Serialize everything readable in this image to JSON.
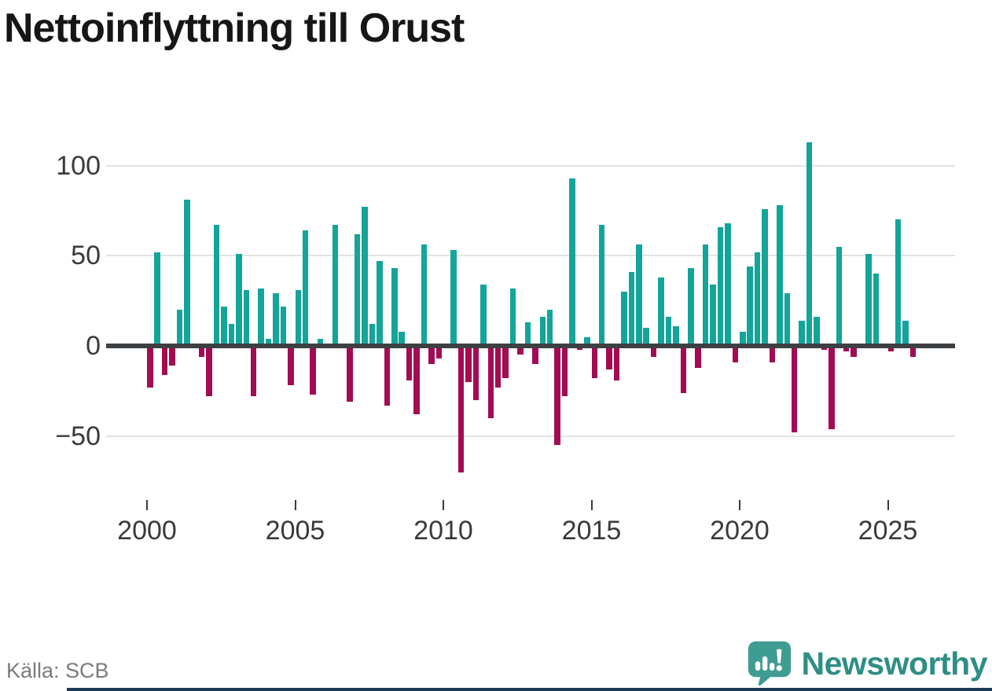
{
  "title": "Nettoinflyttning till Orust",
  "source": "Källa: SCB",
  "footer": {
    "brand": "Newsworthy"
  },
  "colors": {
    "positive": "#14a49a",
    "negative": "#a30b52",
    "zero_line": "#3d4043",
    "gridline": "#e3e3e3",
    "brand_teal": "#2e8e85",
    "bottom_strip": "#1d3a57"
  },
  "chart_data": {
    "type": "bar",
    "title": "Nettoinflyttning till Orust",
    "frequency": "quarterly",
    "x_start_year": 2000,
    "values": [
      -23,
      52,
      -16,
      -11,
      20,
      81,
      0,
      -6,
      -28,
      67,
      22,
      12,
      51,
      31,
      -28,
      32,
      4,
      29,
      22,
      -22,
      31,
      64,
      -27,
      4,
      0,
      67,
      0,
      -31,
      62,
      77,
      12,
      47,
      -33,
      43,
      8,
      -19,
      -38,
      56,
      -10,
      -7,
      0,
      53,
      -70,
      -20,
      -30,
      34,
      -40,
      -23,
      -18,
      32,
      -5,
      13,
      -10,
      16,
      20,
      -55,
      -28,
      93,
      -2,
      5,
      -18,
      67,
      -13,
      -19,
      30,
      41,
      56,
      10,
      -6,
      38,
      16,
      11,
      -26,
      43,
      -12,
      56,
      34,
      66,
      68,
      -9,
      8,
      44,
      52,
      76,
      -9,
      78,
      29,
      -48,
      14,
      113,
      16,
      -2,
      -46,
      55,
      -3,
      -6,
      0,
      51,
      40,
      0,
      -3,
      70,
      14,
      -6
    ],
    "x_tick_labels": [
      "2000",
      "2005",
      "2010",
      "2015",
      "2020",
      "2025"
    ],
    "y_ticks": [
      100,
      50,
      0,
      -50
    ],
    "y_tick_labels": [
      "100",
      "50",
      "0",
      "−50"
    ],
    "ylim": [
      -75,
      115
    ],
    "grid": true,
    "legend": "none",
    "positive_color": "#14a49a",
    "negative_color": "#a30b52",
    "xlabel": "",
    "ylabel": ""
  }
}
